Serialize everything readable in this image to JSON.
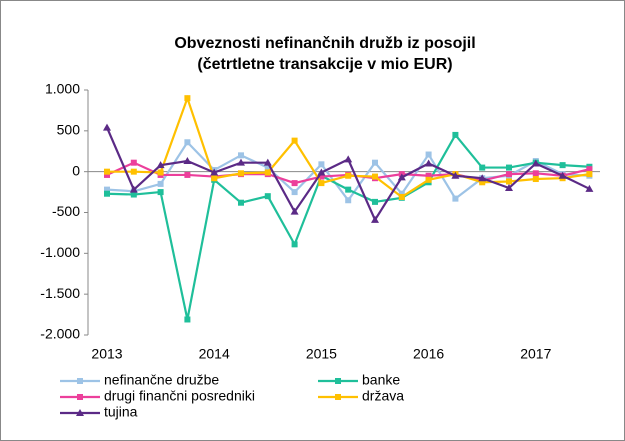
{
  "chart_data": {
    "type": "line",
    "title_lines": [
      "Obveznosti nefinančnih družb iz posojil",
      "(četrtletne transakcije v mio EUR)"
    ],
    "categories": [
      "2013",
      null,
      null,
      null,
      "2014",
      null,
      null,
      null,
      "2015",
      null,
      null,
      null,
      "2016",
      null,
      null,
      null,
      "2017",
      null,
      null
    ],
    "series": [
      {
        "name": "nefinančne družbe",
        "color": "#9dc3e6",
        "marker": "square",
        "values": [
          -220,
          -240,
          -150,
          360,
          20,
          200,
          50,
          -250,
          90,
          -350,
          110,
          -270,
          210,
          -330,
          -80,
          -50,
          130,
          -30,
          -50
        ]
      },
      {
        "name": "banke",
        "color": "#1fbf9a",
        "marker": "square",
        "values": [
          -270,
          -280,
          -250,
          -1810,
          -100,
          -380,
          -300,
          -890,
          -50,
          -220,
          -370,
          -320,
          -130,
          450,
          50,
          50,
          110,
          80,
          60
        ]
      },
      {
        "name": "drugi finančni posredniki",
        "color": "#ec3f9b",
        "marker": "square",
        "values": [
          -40,
          110,
          -40,
          -40,
          -60,
          -30,
          -30,
          -140,
          -60,
          -40,
          -80,
          -30,
          -50,
          -30,
          -110,
          -30,
          -20,
          -50,
          30
        ]
      },
      {
        "name": "država",
        "color": "#ffc000",
        "marker": "square",
        "values": [
          0,
          0,
          -10,
          900,
          -80,
          -20,
          -10,
          380,
          -140,
          -50,
          -60,
          -310,
          -100,
          -30,
          -130,
          -120,
          -90,
          -80,
          -30
        ]
      },
      {
        "name": "tujina",
        "color": "#5b2a86",
        "marker": "triangle",
        "values": [
          540,
          -220,
          80,
          130,
          -10,
          110,
          110,
          -490,
          -10,
          150,
          -590,
          -70,
          100,
          -50,
          -80,
          -200,
          100,
          -50,
          -210
        ]
      }
    ],
    "ylim": [
      -2000,
      1000
    ],
    "yticks": [
      {
        "value": 1000,
        "label": "1.000"
      },
      500,
      0,
      -500,
      {
        "value": -1000,
        "label": "-1.000"
      },
      {
        "value": -1500,
        "label": "-1.500"
      },
      {
        "value": -2000,
        "label": "-2.000"
      }
    ],
    "grid": false
  }
}
